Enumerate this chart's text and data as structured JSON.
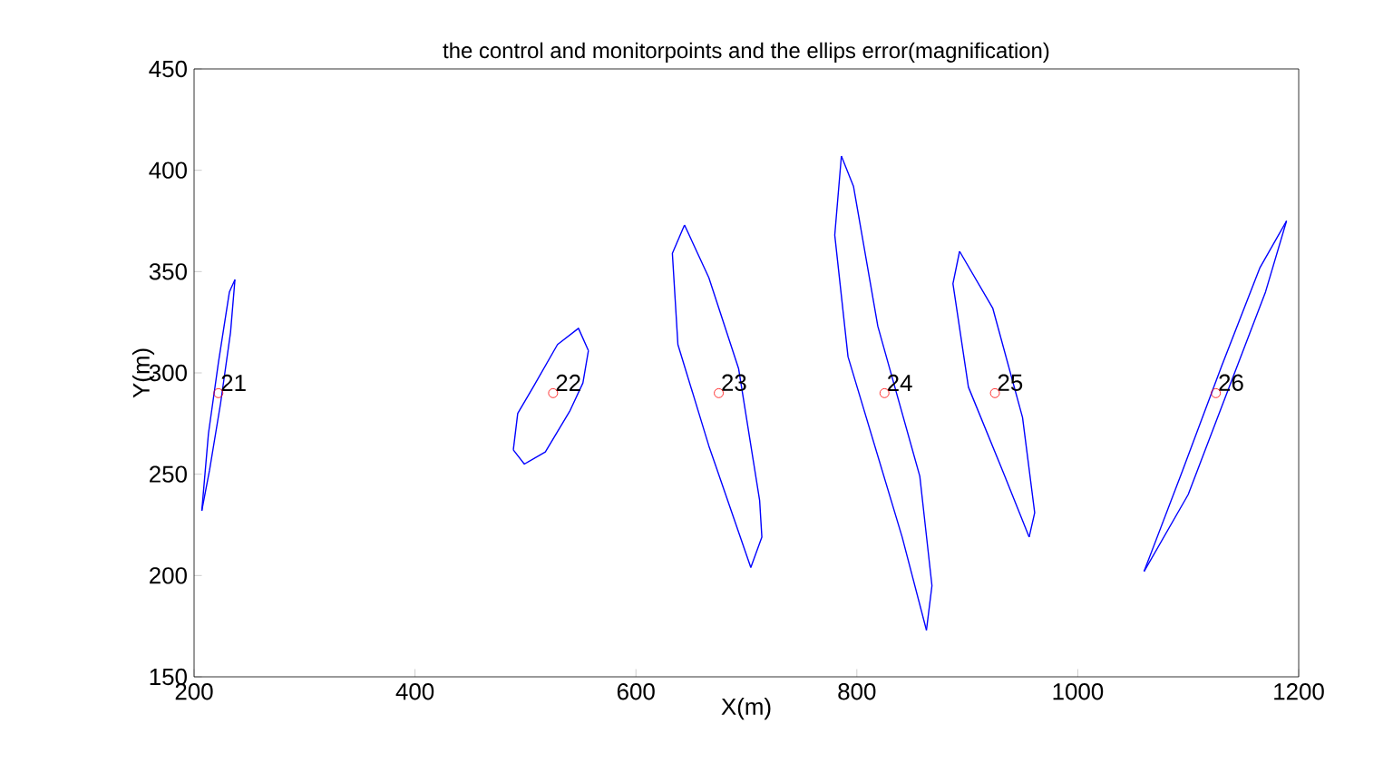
{
  "chart_data": {
    "type": "scatter",
    "title": "the control and monitorpoints and the ellips error(magnification)",
    "xlabel": "X(m)",
    "ylabel": "Y(m)",
    "xlim": [
      200,
      1200
    ],
    "ylim": [
      150,
      450
    ],
    "xticks": [
      200,
      400,
      600,
      800,
      1000,
      1200
    ],
    "yticks": [
      150,
      200,
      250,
      300,
      350,
      400,
      450
    ],
    "grid": false,
    "series": [
      {
        "type": "scatter",
        "marker": "circle",
        "color": "#ff0000",
        "x": [
          222,
          525,
          675,
          825,
          925,
          1125
        ],
        "values": [
          290,
          290,
          290,
          290,
          290,
          290
        ]
      },
      {
        "type": "line",
        "marker": "none",
        "color": "#0000ff",
        "x": [
          207,
          213,
          222,
          232,
          237
        ],
        "values": [
          232,
          270,
          305,
          340,
          346
        ]
      },
      {
        "type": "line",
        "marker": "none",
        "color": "#0000ff",
        "x": [
          207,
          214,
          224,
          233,
          237
        ],
        "values": [
          232,
          252,
          285,
          320,
          346
        ]
      },
      {
        "type": "line",
        "marker": "none",
        "color": "#0000ff",
        "x": [
          489,
          493,
          507,
          529,
          548,
          557
        ],
        "values": [
          262,
          280,
          293,
          314,
          322,
          311
        ]
      },
      {
        "type": "line",
        "marker": "none",
        "color": "#0000ff",
        "x": [
          489,
          499,
          518,
          540,
          552,
          557
        ],
        "values": [
          262,
          255,
          261,
          281,
          295,
          311
        ]
      },
      {
        "type": "line",
        "marker": "none",
        "color": "#0000ff",
        "x": [
          644,
          633,
          638,
          666,
          704
        ],
        "values": [
          373,
          359,
          314,
          264,
          204
        ]
      },
      {
        "type": "line",
        "marker": "none",
        "color": "#0000ff",
        "x": [
          644,
          666,
          693,
          712,
          714,
          704
        ],
        "values": [
          373,
          347,
          302,
          237,
          219,
          204
        ]
      },
      {
        "type": "line",
        "marker": "none",
        "color": "#0000ff",
        "x": [
          786,
          780,
          792,
          841,
          863
        ],
        "values": [
          407,
          368,
          308,
          219,
          173
        ]
      },
      {
        "type": "line",
        "marker": "none",
        "color": "#0000ff",
        "x": [
          786,
          797,
          819,
          857,
          868,
          863
        ],
        "values": [
          407,
          392,
          323,
          249,
          195,
          173
        ]
      },
      {
        "type": "line",
        "marker": "none",
        "color": "#0000ff",
        "x": [
          893,
          887,
          901,
          934,
          956
        ],
        "values": [
          360,
          344,
          293,
          249,
          219
        ]
      },
      {
        "type": "line",
        "marker": "none",
        "color": "#0000ff",
        "x": [
          893,
          923,
          950,
          961,
          956
        ],
        "values": [
          360,
          332,
          278,
          231,
          219
        ]
      },
      {
        "type": "line",
        "marker": "none",
        "color": "#0000ff",
        "x": [
          1060,
          1095,
          1130,
          1165,
          1189
        ],
        "values": [
          202,
          252,
          303,
          352,
          375
        ]
      },
      {
        "type": "line",
        "marker": "none",
        "color": "#0000ff",
        "x": [
          1060,
          1100,
          1135,
          1170,
          1189
        ],
        "values": [
          202,
          240,
          290,
          340,
          375
        ]
      }
    ],
    "annotations": [
      {
        "text": "21",
        "x": 222,
        "y": 290
      },
      {
        "text": "22",
        "x": 525,
        "y": 290
      },
      {
        "text": "23",
        "x": 675,
        "y": 290
      },
      {
        "text": "24",
        "x": 825,
        "y": 290
      },
      {
        "text": "25",
        "x": 925,
        "y": 290
      },
      {
        "text": "26",
        "x": 1125,
        "y": 290
      }
    ]
  }
}
